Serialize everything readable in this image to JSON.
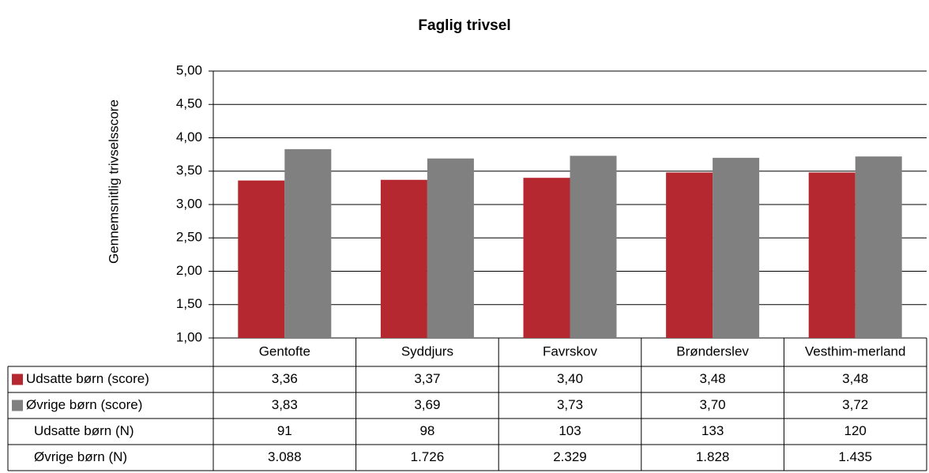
{
  "chart_data": {
    "type": "bar",
    "title": "Faglig trivsel",
    "y_label": "Gennemsnitlig trivselsscore",
    "categories": [
      "Gentofte",
      "Syddjurs",
      "Favrskov",
      "Brønderslev",
      "Vesthim-merland"
    ],
    "series": [
      {
        "name": "Udsatte børn (score)",
        "color": "#b5282f",
        "values": [
          3.36,
          3.37,
          3.4,
          3.48,
          3.48
        ],
        "value_labels": [
          "3,36",
          "3,37",
          "3,40",
          "3,48",
          "3,48"
        ]
      },
      {
        "name": "Øvrige børn (score)",
        "color": "#808080",
        "values": [
          3.83,
          3.69,
          3.73,
          3.7,
          3.72
        ],
        "value_labels": [
          "3,83",
          "3,69",
          "3,73",
          "3,70",
          "3,72"
        ]
      }
    ],
    "table_rows": [
      {
        "name": "Udsatte børn (N)",
        "values": [
          91,
          98,
          103,
          133,
          120
        ]
      },
      {
        "name": "Øvrige børn (N)",
        "values": [
          3088,
          1726,
          2329,
          1828,
          1435
        ],
        "value_labels": [
          "3.088",
          "1.726",
          "2.329",
          "1.828",
          "1.435"
        ]
      }
    ],
    "ylim": [
      1,
      5
    ],
    "yticks": [
      {
        "value": 1,
        "label": "1,00"
      },
      {
        "value": 1.5,
        "label": "1,50"
      },
      {
        "value": 2,
        "label": "2,00"
      },
      {
        "value": 2.5,
        "label": "2,50"
      },
      {
        "value": 3,
        "label": "3,00"
      },
      {
        "value": 3.5,
        "label": "3,50"
      },
      {
        "value": 4,
        "label": "4,00"
      },
      {
        "value": 4.5,
        "label": "4,50"
      },
      {
        "value": 5,
        "label": "5,00"
      }
    ],
    "grid": true
  }
}
